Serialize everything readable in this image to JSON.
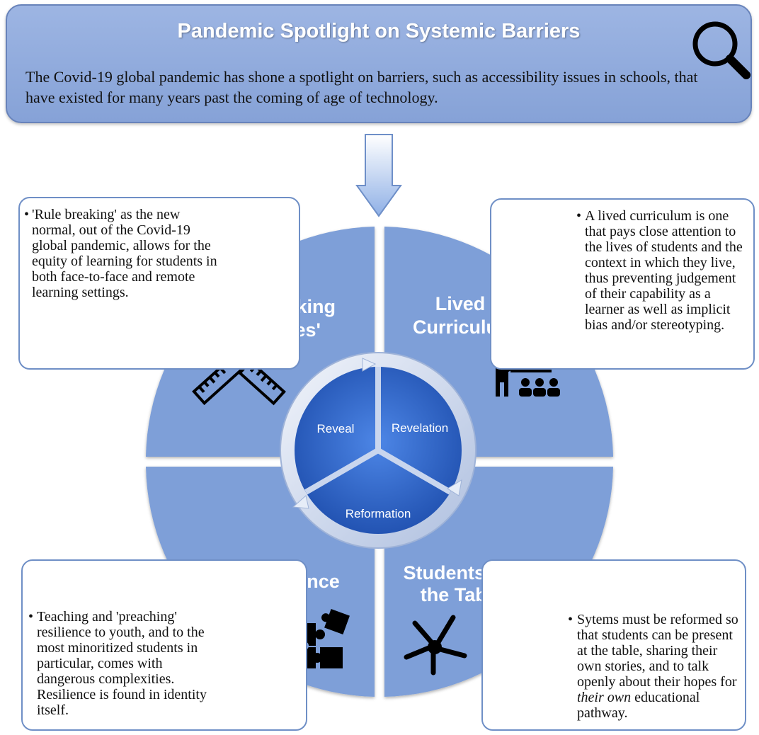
{
  "header": {
    "title": "Pandemic Spotlight on Systemic Barriers",
    "text": "The Covid-19 global pandemic has shone a spotlight on barriers, such as accessibility issues in schools, that have existed for many years past the coming of age of technology.",
    "icon": "magnifying-glass-icon"
  },
  "quadrants": {
    "breaking_rules": {
      "title_line1": "'Breaking",
      "title_line2": "Rules'",
      "icon": "broken-ruler-icon",
      "description": "'Rule breaking' as the new normal, out of the Covid-19 global pandemic, allows for the equity of learning for students in both face-to-face and remote learning settings."
    },
    "lived_curriculum": {
      "title_line1": "Lived",
      "title_line2": "Curriculum",
      "icon": "teacher-presentation-icon",
      "description": "A lived curriculum is one that pays close attention to the lives of students and the context in which they live, thus preventing judgement of their capability as a learner as well as implicit bias and/or stereotyping."
    },
    "resilience": {
      "title": "Resilience",
      "icon": "puzzle-pieces-icon",
      "description": "Teaching and 'preaching' resilience to youth, and to the most minoritized students in particular, comes with dangerous complexities. Resilience is found in identity itself."
    },
    "students_at_table": {
      "title_line1": "Students at",
      "title_line2": "the Table",
      "icon": "joined-hands-icon",
      "description_before": "Sytems must be reformed so that students can be present at the table, sharing their own stories, and to talk openly about their hopes for ",
      "description_emphasis": "their own",
      "description_after": " educational pathway."
    }
  },
  "cycle": {
    "stages": [
      "Reveal",
      "Revelation",
      "Reformation"
    ]
  },
  "colors": {
    "banner": "#8fa9dc",
    "quadrant": "#7e9fd8",
    "center": "#2a5fc4",
    "box_border": "#6f8fc6"
  }
}
